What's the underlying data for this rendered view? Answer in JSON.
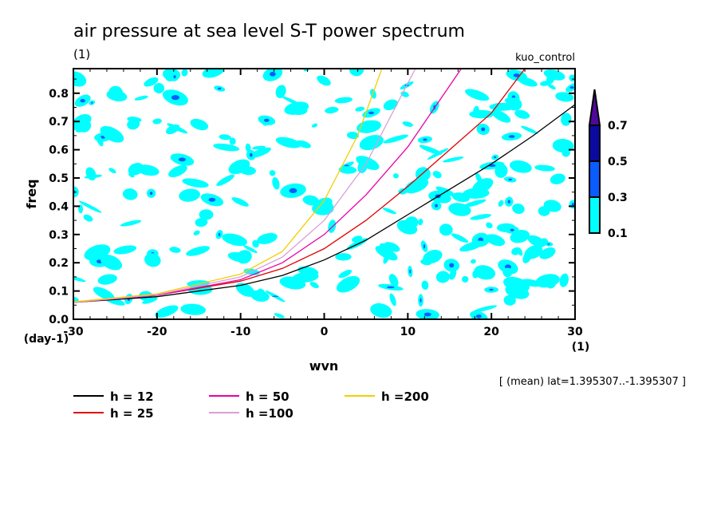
{
  "chart_data": {
    "type": "line",
    "title": "air pressure at sea level S-T power spectrum",
    "subtitle_left": "(1)",
    "subtitle_right": "kuo_control",
    "xlabel": "wvn",
    "ylabel": "freq",
    "x_unit": "(1)",
    "y_unit": "(day-1)",
    "xlim": [
      -30,
      30
    ],
    "ylim": [
      0,
      0.887
    ],
    "x_ticks": [
      -30,
      -20,
      -10,
      0,
      10,
      20,
      30
    ],
    "x_tick_labels": [
      "-30",
      "-20",
      "-10",
      "0",
      "10",
      "20",
      "30"
    ],
    "y_ticks": [
      0.0,
      0.1,
      0.2,
      0.3,
      0.4,
      0.5,
      0.6,
      0.7,
      0.8
    ],
    "y_tick_labels": [
      "0.0",
      "0.1",
      "0.2",
      "0.3",
      "0.4",
      "0.5",
      "0.6",
      "0.7",
      "0.8"
    ],
    "annotation": "[ (mean) lat=1.395307..-1.395307 ]",
    "colorbar": {
      "levels": [
        "0.1",
        "0.3",
        "0.5",
        "0.7"
      ],
      "colors": [
        "#00ffff",
        "#0a5cff",
        "#0a0aa0",
        "#50089c"
      ]
    },
    "contour_fill_colors": {
      "low": "#00ffff",
      "mid": "#0a5cff",
      "high": "#0a0aa0"
    },
    "series": [
      {
        "name": "h = 12",
        "color": "#000000",
        "x": [
          -30,
          -20,
          -10,
          -5,
          0,
          5,
          10,
          15,
          20,
          25,
          30
        ],
        "y": [
          0.06,
          0.08,
          0.12,
          0.155,
          0.21,
          0.28,
          0.37,
          0.46,
          0.55,
          0.65,
          0.76
        ]
      },
      {
        "name": "h = 25",
        "color": "#e00000",
        "x": [
          -30,
          -20,
          -10,
          -5,
          0,
          5,
          10,
          15,
          20,
          24
        ],
        "y": [
          0.06,
          0.085,
          0.135,
          0.18,
          0.25,
          0.35,
          0.47,
          0.6,
          0.73,
          0.887
        ]
      },
      {
        "name": "h = 50",
        "color": "#e800a8",
        "x": [
          -30,
          -20,
          -10,
          -5,
          0,
          5,
          10,
          16.4
        ],
        "y": [
          0.06,
          0.085,
          0.14,
          0.2,
          0.3,
          0.44,
          0.61,
          0.887
        ]
      },
      {
        "name": "h =100",
        "color": "#d8a0d8",
        "x": [
          -30,
          -20,
          -10,
          -5,
          0,
          5,
          10.9
        ],
        "y": [
          0.06,
          0.087,
          0.15,
          0.22,
          0.35,
          0.55,
          0.887
        ]
      },
      {
        "name": "h =200",
        "color": "#f0d000",
        "x": [
          -30,
          -20,
          -10,
          -5,
          0,
          4,
          6.9
        ],
        "y": [
          0.062,
          0.09,
          0.16,
          0.24,
          0.42,
          0.65,
          0.887
        ]
      }
    ],
    "legend_position": "bottom-left"
  }
}
